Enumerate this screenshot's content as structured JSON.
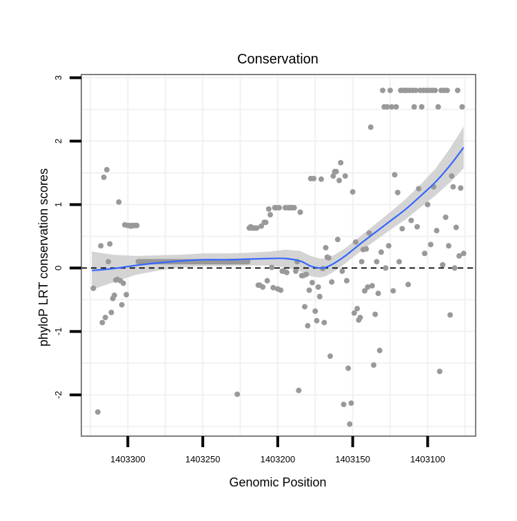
{
  "chart_data": {
    "type": "scatter",
    "title": "Conservation",
    "xlabel": "Genomic Position",
    "ylabel": "phyloP LRT conservation scores",
    "x_reversed": true,
    "xlim": [
      1403068,
      1403331
    ],
    "ylim": [
      -2.65,
      3.05
    ],
    "x_ticks": [
      1403300,
      1403250,
      1403200,
      1403150,
      1403100
    ],
    "x_tick_labels": [
      "1403300",
      "1403250",
      "1403200",
      "1403150",
      "1403100"
    ],
    "y_ticks": [
      -2,
      -1,
      0,
      1,
      2,
      3
    ],
    "y_tick_labels": [
      "-2",
      "-1",
      "0",
      "1",
      "2",
      "3"
    ],
    "reference_line": {
      "y": 0,
      "style": "dashed",
      "color": "#000000"
    },
    "colors": {
      "points": "#999999",
      "smooth_line": "#3366ff",
      "ribbon": "#cccccc",
      "panel_border": "#7f7f7f",
      "grid": "#f2f2f2"
    },
    "series": [
      {
        "name": "phyloP LRT scores",
        "points": [
          [
            1403323,
            -0.32
          ],
          [
            1403320,
            -2.27
          ],
          [
            1403318,
            0.35
          ],
          [
            1403317,
            -0.86
          ],
          [
            1403316,
            1.43
          ],
          [
            1403315,
            -0.78
          ],
          [
            1403314,
            1.55
          ],
          [
            1403313,
            0.1
          ],
          [
            1403312,
            0.38
          ],
          [
            1403311,
            -0.7
          ],
          [
            1403310,
            -0.48
          ],
          [
            1403309,
            -0.43
          ],
          [
            1403308,
            -0.19
          ],
          [
            1403307,
            -0.18
          ],
          [
            1403306,
            1.04
          ],
          [
            1403305,
            -0.2
          ],
          [
            1403304,
            -0.58
          ],
          [
            1403303,
            -0.24
          ],
          [
            1403302,
            0.68
          ],
          [
            1403301,
            -0.42
          ],
          [
            1403300,
            0.67
          ],
          [
            1403299,
            0.67
          ],
          [
            1403298,
            0.66
          ],
          [
            1403297,
            0.67
          ],
          [
            1403296,
            0.67
          ],
          [
            1403295,
            0.67
          ],
          [
            1403294,
            0.67
          ],
          [
            1403293,
            0.1
          ],
          [
            1403292,
            0.1
          ],
          [
            1403291,
            0.1
          ],
          [
            1403290,
            0.1
          ],
          [
            1403289,
            0.1
          ],
          [
            1403288,
            0.1
          ],
          [
            1403287,
            0.1
          ],
          [
            1403286,
            0.1
          ],
          [
            1403285,
            0.1
          ],
          [
            1403284,
            0.1
          ],
          [
            1403283,
            0.1
          ],
          [
            1403282,
            0.1
          ],
          [
            1403281,
            0.1
          ],
          [
            1403280,
            0.1
          ],
          [
            1403279,
            0.1
          ],
          [
            1403278,
            0.1
          ],
          [
            1403277,
            0.1
          ],
          [
            1403276,
            0.1
          ],
          [
            1403275,
            0.1
          ],
          [
            1403274,
            0.1
          ],
          [
            1403273,
            0.1
          ],
          [
            1403272,
            0.1
          ],
          [
            1403271,
            0.1
          ],
          [
            1403270,
            0.1
          ],
          [
            1403269,
            0.1
          ],
          [
            1403268,
            0.1
          ],
          [
            1403267,
            0.1
          ],
          [
            1403266,
            0.1
          ],
          [
            1403265,
            0.1
          ],
          [
            1403264,
            0.1
          ],
          [
            1403263,
            0.1
          ],
          [
            1403262,
            0.1
          ],
          [
            1403261,
            0.1
          ],
          [
            1403260,
            0.1
          ],
          [
            1403259,
            0.1
          ],
          [
            1403258,
            0.1
          ],
          [
            1403257,
            0.1
          ],
          [
            1403256,
            0.1
          ],
          [
            1403255,
            0.1
          ],
          [
            1403254,
            0.1
          ],
          [
            1403253,
            0.1
          ],
          [
            1403252,
            0.1
          ],
          [
            1403251,
            0.1
          ],
          [
            1403250,
            0.1
          ],
          [
            1403249,
            0.1
          ],
          [
            1403248,
            0.1
          ],
          [
            1403247,
            0.1
          ],
          [
            1403246,
            0.1
          ],
          [
            1403245,
            0.1
          ],
          [
            1403244,
            0.1
          ],
          [
            1403243,
            0.1
          ],
          [
            1403242,
            0.1
          ],
          [
            1403241,
            0.1
          ],
          [
            1403240,
            0.1
          ],
          [
            1403239,
            0.1
          ],
          [
            1403238,
            0.1
          ],
          [
            1403237,
            0.1
          ],
          [
            1403236,
            0.1
          ],
          [
            1403235,
            0.1
          ],
          [
            1403234,
            0.1
          ],
          [
            1403233,
            0.1
          ],
          [
            1403232,
            0.1
          ],
          [
            1403231,
            0.1
          ],
          [
            1403230,
            0.1
          ],
          [
            1403229,
            0.1
          ],
          [
            1403228,
            0.1
          ],
          [
            1403227,
            -1.99
          ],
          [
            1403226,
            0.1
          ],
          [
            1403225,
            0.1
          ],
          [
            1403224,
            0.1
          ],
          [
            1403223,
            0.1
          ],
          [
            1403222,
            0.1
          ],
          [
            1403221,
            0.1
          ],
          [
            1403220,
            0.1
          ],
          [
            1403219,
            0.63
          ],
          [
            1403218,
            0.65
          ],
          [
            1403217,
            0.63
          ],
          [
            1403216,
            0.63
          ],
          [
            1403215,
            0.63
          ],
          [
            1403214,
            0.63
          ],
          [
            1403213,
            -0.27
          ],
          [
            1403212,
            -0.27
          ],
          [
            1403211,
            0.66
          ],
          [
            1403210,
            -0.3
          ],
          [
            1403209,
            0.72
          ],
          [
            1403208,
            0.72
          ],
          [
            1403207,
            -0.2
          ],
          [
            1403206,
            0.93
          ],
          [
            1403205,
            0.84
          ],
          [
            1403204,
            0.01
          ],
          [
            1403203,
            -0.31
          ],
          [
            1403202,
            0.95
          ],
          [
            1403201,
            0.95
          ],
          [
            1403200,
            -0.33
          ],
          [
            1403199,
            0.95
          ],
          [
            1403198,
            -0.35
          ],
          [
            1403197,
            -0.05
          ],
          [
            1403196,
            -0.05
          ],
          [
            1403195,
            0.95
          ],
          [
            1403194,
            -0.07
          ],
          [
            1403193,
            0.95
          ],
          [
            1403192,
            0.95
          ],
          [
            1403191,
            0.95
          ],
          [
            1403190,
            0.95
          ],
          [
            1403189,
            0.95
          ],
          [
            1403188,
            -0.05
          ],
          [
            1403187,
            0.1
          ],
          [
            1403186,
            -1.93
          ],
          [
            1403185,
            0.88
          ],
          [
            1403184,
            -0.12
          ],
          [
            1403183,
            -0.12
          ],
          [
            1403182,
            -0.61
          ],
          [
            1403181,
            -0.1
          ],
          [
            1403180,
            -0.91
          ],
          [
            1403179,
            -0.35
          ],
          [
            1403178,
            1.41
          ],
          [
            1403177,
            -0.23
          ],
          [
            1403176,
            1.41
          ],
          [
            1403175,
            -0.68
          ],
          [
            1403174,
            -0.83
          ],
          [
            1403173,
            -0.3
          ],
          [
            1403172,
            -0.45
          ],
          [
            1403171,
            1.4
          ],
          [
            1403170,
            -0.01
          ],
          [
            1403169,
            -0.86
          ],
          [
            1403168,
            0.32
          ],
          [
            1403167,
            0.17
          ],
          [
            1403166,
            0.16
          ],
          [
            1403165,
            -1.39
          ],
          [
            1403164,
            -0.22
          ],
          [
            1403163,
            1.45
          ],
          [
            1403162,
            1.52
          ],
          [
            1403161,
            1.52
          ],
          [
            1403160,
            0.45
          ],
          [
            1403159,
            1.38
          ],
          [
            1403158,
            1.66
          ],
          [
            1403157,
            -0.05
          ],
          [
            1403156,
            -2.15
          ],
          [
            1403155,
            1.45
          ],
          [
            1403154,
            -0.2
          ],
          [
            1403153,
            -1.58
          ],
          [
            1403152,
            -2.46
          ],
          [
            1403151,
            -2.13
          ],
          [
            1403150,
            1.2
          ],
          [
            1403149,
            -0.71
          ],
          [
            1403148,
            0.41
          ],
          [
            1403147,
            -0.64
          ],
          [
            1403146,
            -0.82
          ],
          [
            1403145,
            -0.78
          ],
          [
            1403144,
            0.1
          ],
          [
            1403143,
            0.29
          ],
          [
            1403142,
            -0.36
          ],
          [
            1403141,
            0.3
          ],
          [
            1403140,
            -0.3
          ],
          [
            1403139,
            0.55
          ],
          [
            1403138,
            2.22
          ],
          [
            1403137,
            -0.28
          ],
          [
            1403136,
            -1.53
          ],
          [
            1403135,
            -0.73
          ],
          [
            1403134,
            0.1
          ],
          [
            1403133,
            -0.4
          ],
          [
            1403132,
            -1.3
          ],
          [
            1403131,
            0.25
          ],
          [
            1403130,
            2.8
          ],
          [
            1403129,
            2.54
          ],
          [
            1403128,
            0.0
          ],
          [
            1403127,
            2.54
          ],
          [
            1403126,
            0.35
          ],
          [
            1403125,
            2.8
          ],
          [
            1403124,
            2.54
          ],
          [
            1403123,
            -0.36
          ],
          [
            1403122,
            1.47
          ],
          [
            1403121,
            2.54
          ],
          [
            1403120,
            1.19
          ],
          [
            1403119,
            0.1
          ],
          [
            1403118,
            2.8
          ],
          [
            1403117,
            0.62
          ],
          [
            1403116,
            2.8
          ],
          [
            1403115,
            2.8
          ],
          [
            1403114,
            2.8
          ],
          [
            1403113,
            -0.26
          ],
          [
            1403112,
            2.8
          ],
          [
            1403111,
            0.75
          ],
          [
            1403110,
            2.8
          ],
          [
            1403109,
            2.54
          ],
          [
            1403108,
            2.8
          ],
          [
            1403107,
            0.65
          ],
          [
            1403106,
            1.25
          ],
          [
            1403105,
            2.8
          ],
          [
            1403104,
            2.54
          ],
          [
            1403103,
            2.8
          ],
          [
            1403102,
            0.23
          ],
          [
            1403101,
            2.8
          ],
          [
            1403100,
            1.0
          ],
          [
            1403099,
            2.8
          ],
          [
            1403098,
            0.37
          ],
          [
            1403097,
            2.8
          ],
          [
            1403096,
            1.28
          ],
          [
            1403095,
            2.8
          ],
          [
            1403094,
            0.59
          ],
          [
            1403093,
            2.54
          ],
          [
            1403092,
            -1.63
          ],
          [
            1403091,
            2.8
          ],
          [
            1403090,
            0.05
          ],
          [
            1403089,
            2.8
          ],
          [
            1403088,
            0.8
          ],
          [
            1403087,
            2.8
          ],
          [
            1403086,
            0.35
          ],
          [
            1403085,
            -0.74
          ],
          [
            1403084,
            1.45
          ],
          [
            1403083,
            1.28
          ],
          [
            1403082,
            0.0
          ],
          [
            1403081,
            0.64
          ],
          [
            1403080,
            2.8
          ],
          [
            1403079,
            0.19
          ],
          [
            1403078,
            1.26
          ],
          [
            1403077,
            2.54
          ],
          [
            1403076,
            0.23
          ]
        ]
      }
    ],
    "smooth_fit": {
      "method": "loess",
      "x": [
        1403324,
        1403310,
        1403295,
        1403280,
        1403265,
        1403250,
        1403235,
        1403220,
        1403205,
        1403195,
        1403185,
        1403178,
        1403172,
        1403168,
        1403162,
        1403155,
        1403145,
        1403135,
        1403125,
        1403115,
        1403105,
        1403095,
        1403085,
        1403076
      ],
      "y": [
        -0.04,
        -0.01,
        0.04,
        0.08,
        0.11,
        0.13,
        0.13,
        0.14,
        0.15,
        0.15,
        0.11,
        0.03,
        0.0,
        0.01,
        0.08,
        0.19,
        0.38,
        0.56,
        0.74,
        0.92,
        1.13,
        1.35,
        1.62,
        1.9
      ],
      "ci_width": [
        0.3,
        0.22,
        0.15,
        0.12,
        0.1,
        0.1,
        0.1,
        0.1,
        0.11,
        0.14,
        0.16,
        0.16,
        0.15,
        0.14,
        0.13,
        0.12,
        0.12,
        0.13,
        0.14,
        0.16,
        0.18,
        0.21,
        0.27,
        0.33
      ]
    }
  }
}
